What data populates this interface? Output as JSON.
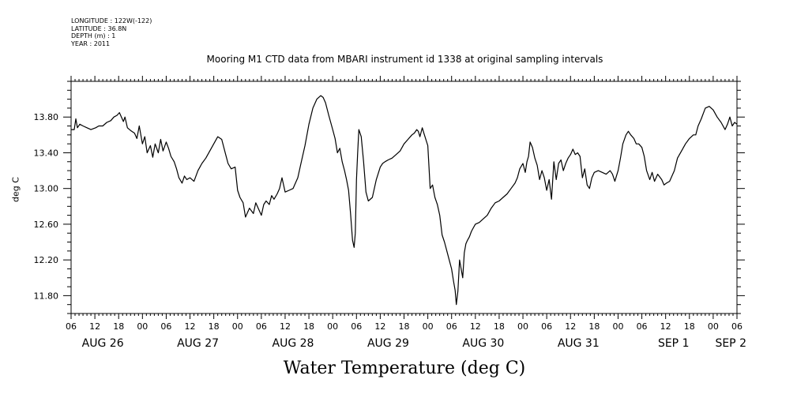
{
  "header": {
    "meta_lines": [
      "LONGITUDE : 122W(-122)",
      "LATITUDE : 36.8N",
      "DEPTH (m) : 1",
      "YEAR : 2011"
    ]
  },
  "chart_data": {
    "type": "line",
    "title": "Mooring M1 CTD data from MBARI instrument id 1338 at original sampling intervals",
    "xlabel": "Water Temperature (deg C)",
    "ylabel": "deg C",
    "ylim": [
      11.6,
      14.2
    ],
    "yticks": [
      11.8,
      12.2,
      12.6,
      13.0,
      13.4,
      13.8
    ],
    "ytick_labels": [
      "11.80",
      "12.20",
      "12.60",
      "13.00",
      "13.40",
      "13.80"
    ],
    "x_unit": "hours since AUG 26 00:00",
    "xlim": [
      6,
      174
    ],
    "hour_ticks": [
      6,
      12,
      18,
      24,
      30,
      36,
      42,
      48,
      54,
      60,
      66,
      72,
      78,
      84,
      90,
      96,
      102,
      108,
      114,
      120,
      126,
      132,
      138,
      144,
      150,
      156,
      162,
      168,
      174
    ],
    "hour_tick_labels": [
      "06",
      "12",
      "18",
      "00",
      "06",
      "12",
      "18",
      "00",
      "06",
      "12",
      "18",
      "00",
      "06",
      "12",
      "18",
      "00",
      "06",
      "12",
      "18",
      "00",
      "06",
      "12",
      "18",
      "00",
      "06",
      "12",
      "18",
      "00",
      "06"
    ],
    "day_labels": [
      {
        "text": "AUG 26",
        "x": 14
      },
      {
        "text": "AUG 27",
        "x": 38
      },
      {
        "text": "AUG 28",
        "x": 62
      },
      {
        "text": "AUG 29",
        "x": 86
      },
      {
        "text": "AUG 30",
        "x": 110
      },
      {
        "text": "AUG 31",
        "x": 134
      },
      {
        "text": "SEP  1",
        "x": 158
      },
      {
        "text": "SEP  2",
        "x": 174
      }
    ],
    "series": [
      {
        "color": "#000000",
        "x": [
          6.0,
          6.8,
          7.2,
          7.6,
          8.2,
          9.0,
          10.0,
          11.0,
          12.2,
          13.0,
          14.0,
          15.0,
          16.0,
          16.8,
          17.6,
          18.2,
          19.2,
          19.6,
          20.2,
          21.0,
          22.0,
          22.6,
          23.2,
          24.0,
          24.6,
          25.2,
          26.0,
          26.6,
          27.2,
          28.0,
          28.6,
          29.2,
          30.0,
          30.6,
          31.2,
          32.0,
          32.6,
          33.2,
          34.0,
          34.6,
          35.2,
          36.0,
          37.0,
          38.0,
          39.0,
          40.0,
          41.0,
          42.0,
          43.0,
          44.0,
          45.0,
          45.6,
          46.4,
          47.4,
          48.0,
          48.6,
          49.4,
          50.0,
          51.0,
          52.0,
          52.6,
          53.4,
          54.0,
          54.6,
          55.2,
          56.0,
          56.6,
          57.2,
          58.0,
          58.6,
          59.2,
          60.0,
          61.0,
          62.0,
          62.6,
          63.2,
          64.0,
          65.0,
          66.0,
          67.0,
          68.0,
          69.0,
          69.6,
          70.2,
          71.0,
          72.0,
          72.6,
          73.2,
          73.8,
          74.4,
          75.0,
          75.5,
          76.0,
          76.5,
          77.0,
          77.4,
          77.7,
          78.0,
          78.3,
          78.6,
          79.2,
          79.8,
          80.4,
          81.0,
          82.0,
          83.0,
          84.0,
          84.6,
          85.2,
          86.0,
          87.0,
          88.0,
          89.0,
          90.0,
          91.0,
          92.0,
          92.6,
          93.2,
          93.6,
          94.0,
          94.6,
          95.0,
          96.0,
          96.6,
          97.2,
          97.8,
          98.4,
          99.0,
          99.6,
          100.2,
          100.8,
          101.4,
          102.0,
          102.5,
          102.9,
          103.2,
          103.6,
          104.0,
          104.4,
          104.8,
          105.2,
          105.6,
          106.0,
          106.5,
          107.0,
          107.5,
          108.0,
          109.0,
          110.0,
          111.0,
          112.0,
          113.0,
          114.0,
          115.0,
          116.0,
          117.0,
          118.0,
          118.6,
          119.2,
          120.0,
          120.6,
          121.0,
          121.4,
          121.8,
          122.4,
          123.0,
          123.6,
          124.2,
          124.8,
          125.4,
          126.0,
          126.6,
          127.2,
          127.8,
          128.4,
          129.0,
          129.6,
          130.2,
          130.8,
          131.4,
          132.0,
          132.6,
          133.2,
          133.8,
          134.4,
          135.0,
          135.6,
          136.2,
          136.8,
          137.4,
          138.0,
          139.0,
          140.0,
          141.0,
          142.0,
          142.6,
          143.2,
          144.0,
          144.6,
          145.2,
          146.0,
          146.6,
          147.2,
          148.0,
          148.6,
          149.2,
          150.0,
          150.6,
          151.2,
          152.0,
          152.6,
          153.2,
          154.0,
          155.0,
          155.6,
          156.2,
          157.0,
          157.6,
          158.2,
          159.0,
          160.0,
          161.0,
          162.0,
          163.0,
          163.6,
          164.2,
          165.0,
          166.0,
          167.0,
          168.0,
          169.0,
          170.0,
          171.0,
          171.6,
          172.2,
          172.8,
          173.4,
          174.0
        ],
        "values": [
          13.66,
          13.66,
          13.78,
          13.68,
          13.72,
          13.7,
          13.68,
          13.66,
          13.68,
          13.7,
          13.7,
          13.74,
          13.76,
          13.8,
          13.82,
          13.85,
          13.75,
          13.8,
          13.68,
          13.65,
          13.62,
          13.56,
          13.7,
          13.5,
          13.58,
          13.4,
          13.48,
          13.35,
          13.5,
          13.4,
          13.55,
          13.42,
          13.52,
          13.45,
          13.36,
          13.3,
          13.22,
          13.12,
          13.06,
          13.14,
          13.1,
          13.12,
          13.08,
          13.2,
          13.28,
          13.34,
          13.42,
          13.5,
          13.58,
          13.55,
          13.38,
          13.28,
          13.22,
          13.24,
          12.98,
          12.9,
          12.84,
          12.68,
          12.78,
          12.72,
          12.84,
          12.76,
          12.7,
          12.82,
          12.86,
          12.82,
          12.92,
          12.88,
          12.94,
          13.0,
          13.12,
          12.96,
          12.98,
          13.0,
          13.06,
          13.12,
          13.28,
          13.48,
          13.72,
          13.9,
          14.0,
          14.04,
          14.02,
          13.96,
          13.82,
          13.66,
          13.56,
          13.4,
          13.45,
          13.3,
          13.2,
          13.1,
          12.98,
          12.72,
          12.42,
          12.34,
          12.5,
          13.1,
          13.4,
          13.66,
          13.58,
          13.3,
          12.96,
          12.86,
          12.9,
          13.1,
          13.24,
          13.28,
          13.3,
          13.32,
          13.34,
          13.38,
          13.42,
          13.5,
          13.55,
          13.6,
          13.62,
          13.66,
          13.64,
          13.58,
          13.68,
          13.62,
          13.48,
          13.0,
          13.04,
          12.9,
          12.82,
          12.7,
          12.48,
          12.4,
          12.3,
          12.2,
          12.1,
          11.96,
          11.86,
          11.7,
          11.85,
          12.2,
          12.1,
          12.0,
          12.28,
          12.38,
          12.42,
          12.46,
          12.52,
          12.56,
          12.6,
          12.62,
          12.66,
          12.7,
          12.78,
          12.84,
          12.86,
          12.9,
          12.94,
          13.0,
          13.06,
          13.12,
          13.22,
          13.28,
          13.18,
          13.3,
          13.36,
          13.52,
          13.46,
          13.34,
          13.26,
          13.1,
          13.2,
          13.12,
          12.98,
          13.1,
          12.88,
          13.3,
          13.1,
          13.28,
          13.32,
          13.2,
          13.28,
          13.34,
          13.38,
          13.44,
          13.38,
          13.4,
          13.36,
          13.12,
          13.22,
          13.04,
          13.0,
          13.12,
          13.18,
          13.2,
          13.18,
          13.16,
          13.2,
          13.16,
          13.08,
          13.2,
          13.34,
          13.5,
          13.6,
          13.64,
          13.6,
          13.56,
          13.5,
          13.5,
          13.46,
          13.36,
          13.2,
          13.1,
          13.18,
          13.08,
          13.16,
          13.1,
          13.04,
          13.06,
          13.08,
          13.14,
          13.2,
          13.34,
          13.42,
          13.5,
          13.56,
          13.6,
          13.6,
          13.7,
          13.78,
          13.9,
          13.92,
          13.88,
          13.8,
          13.74,
          13.66,
          13.72,
          13.8,
          13.7,
          13.74,
          13.72
        ],
        "note": ""
      }
    ]
  }
}
